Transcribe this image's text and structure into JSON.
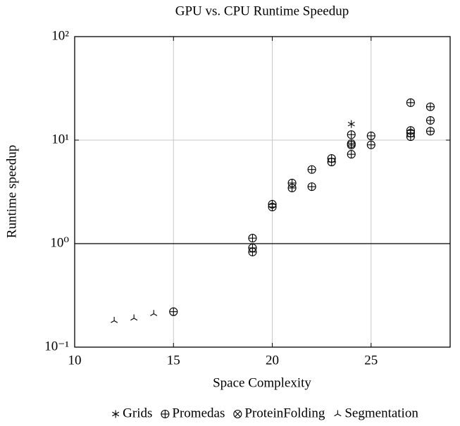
{
  "chart_data": {
    "type": "scatter",
    "title": "GPU vs. CPU Runtime Speedup",
    "x_label": "Space Complexity",
    "y_label": "Runtime speedup",
    "xlim": [
      10,
      29
    ],
    "xticks": [
      10,
      15,
      20,
      25
    ],
    "ylim": [
      0.1,
      100
    ],
    "yscale": "log",
    "yticks": [
      {
        "value": 0.1,
        "label": "10⁻¹"
      },
      {
        "value": 1,
        "label": "10⁰"
      },
      {
        "value": 10,
        "label": "10¹"
      },
      {
        "value": 100,
        "label": "10²"
      }
    ],
    "grid": true,
    "reference_line": 1,
    "legend": "bottom",
    "series": [
      {
        "name": "Grids",
        "marker": "star",
        "color": "#000000",
        "x": [
          24
        ],
        "y": [
          14.3
        ]
      },
      {
        "name": "Promedas",
        "marker": "oplus",
        "color": "#000000",
        "x": [
          15,
          19,
          19,
          19,
          20,
          20,
          21,
          21,
          22,
          22,
          23,
          23,
          24,
          24,
          24,
          24,
          25,
          25,
          27,
          27,
          27,
          27,
          28,
          28,
          28
        ],
        "y": [
          0.22,
          1.13,
          0.91,
          0.83,
          2.4,
          2.26,
          3.85,
          3.45,
          5.2,
          3.55,
          6.65,
          6.15,
          11.3,
          9.25,
          8.96,
          7.3,
          11,
          9,
          23,
          12.4,
          11.7,
          10.8,
          21,
          15.5,
          12.2
        ]
      },
      {
        "name": "ProteinFolding",
        "marker": "otimes",
        "color": "#000000",
        "x": [],
        "y": []
      },
      {
        "name": "Segmentation",
        "marker": "tri",
        "color": "#000000",
        "x": [
          12,
          13,
          14
        ],
        "y": [
          0.18,
          0.19,
          0.21
        ]
      }
    ]
  }
}
